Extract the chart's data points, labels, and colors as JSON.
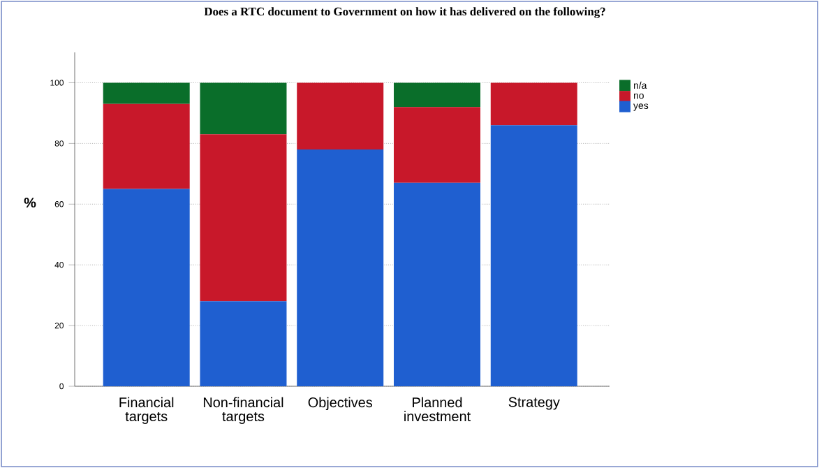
{
  "chart_data": {
    "type": "bar",
    "stacked": true,
    "title": "Does a RTC document to Government on how it has delivered on the following?",
    "ylabel": "%",
    "categories": [
      "Financial targets",
      "Non-financial targets",
      "Objectives",
      "Planned investment",
      "Strategy"
    ],
    "series": [
      {
        "name": "yes",
        "color": "#1f5fd0",
        "values": [
          65,
          28,
          78,
          67,
          86
        ]
      },
      {
        "name": "no",
        "color": "#c8182a",
        "values": [
          28,
          55,
          22,
          25,
          14
        ]
      },
      {
        "name": "n/a",
        "color": "#0a6e2a",
        "values": [
          7,
          17,
          0,
          8,
          0
        ]
      }
    ],
    "ylim": [
      0,
      110
    ],
    "yticks": [
      0,
      20,
      40,
      60,
      80,
      100
    ],
    "grid": "y",
    "legend": "right"
  }
}
